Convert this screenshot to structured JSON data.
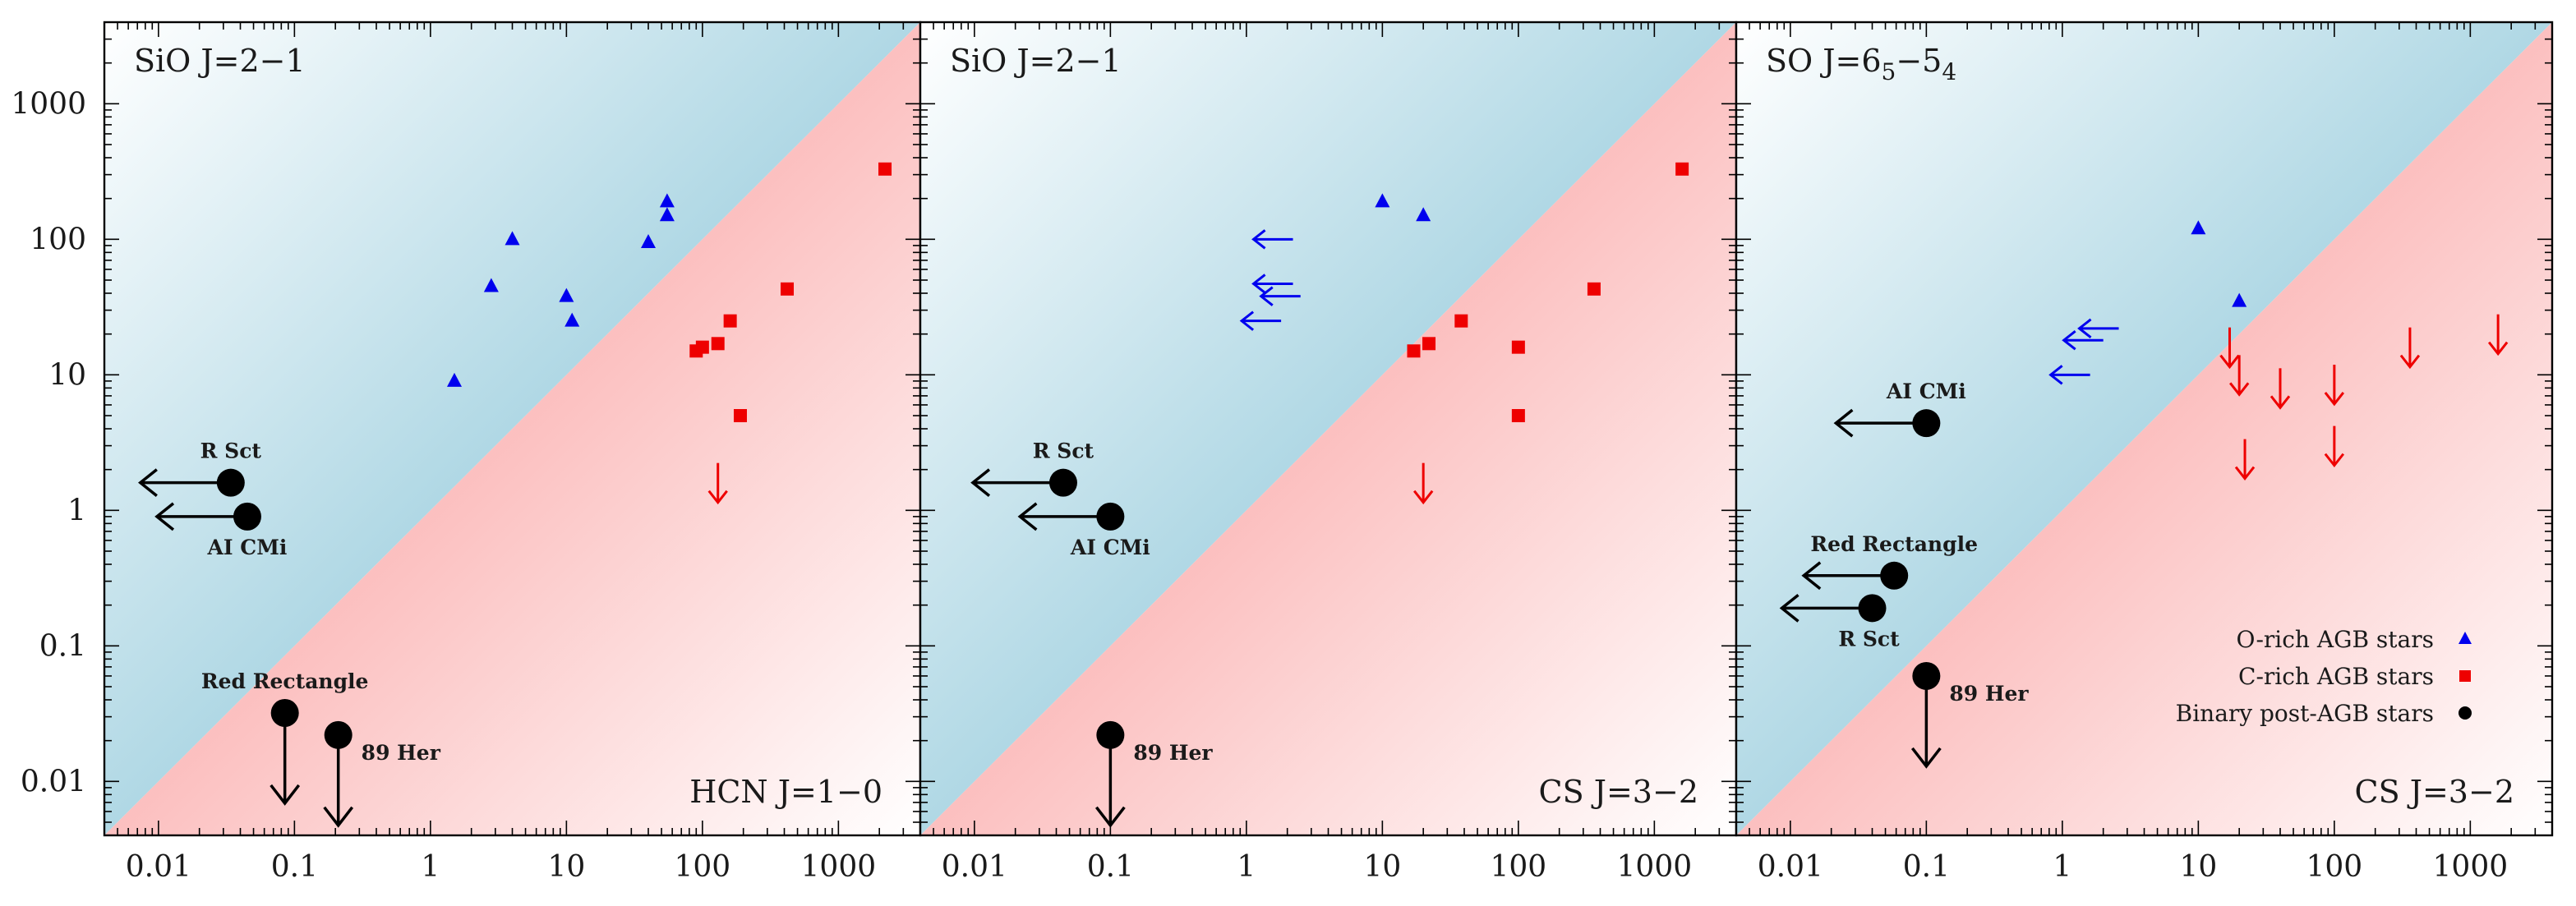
{
  "chart_data": [
    {
      "type": "scatter",
      "scale": "log-log",
      "ylabel_molecule": "SiO J=2−1",
      "xlabel_molecule": "HCN J=1−0",
      "xlim": [
        0.004,
        4000
      ],
      "ylim": [
        0.004,
        4000
      ],
      "x_ticks": [
        "0.01",
        "0.1",
        "1",
        "10",
        "100",
        "1000"
      ],
      "y_ticks": [
        "0.01",
        "0.1",
        "1",
        "10",
        "100",
        "1000"
      ],
      "series": [
        {
          "name": "O-rich AGB stars",
          "marker": "triangle",
          "color": "#0000ee",
          "points": [
            [
              1.5,
              9
            ],
            [
              2.8,
              45
            ],
            [
              4,
              100
            ],
            [
              10,
              38
            ],
            [
              11,
              25
            ],
            [
              40,
              95
            ],
            [
              55,
              150
            ],
            [
              55,
              190
            ]
          ],
          "upper_limits": []
        },
        {
          "name": "C-rich AGB stars",
          "marker": "square",
          "color": "#ee0000",
          "points": [
            [
              90,
              15
            ],
            [
              100,
              16
            ],
            [
              130,
              17
            ],
            [
              160,
              25
            ],
            [
              190,
              5
            ],
            [
              420,
              43
            ],
            [
              2200,
              330
            ]
          ],
          "upper_limits": [
            [
              130,
              1.6
            ]
          ]
        },
        {
          "name": "Binary post-AGB stars",
          "marker": "circle",
          "color": "#000000",
          "points": [
            {
              "x": 0.034,
              "y": 1.6,
              "label": "R Sct",
              "limit": "left"
            },
            {
              "x": 0.045,
              "y": 0.9,
              "label": "AI CMi",
              "limit": "left"
            },
            {
              "x": 0.085,
              "y": 0.032,
              "label": "Red Rectangle",
              "limit": "down"
            },
            {
              "x": 0.21,
              "y": 0.022,
              "label": "89 Her",
              "limit": "down"
            }
          ]
        }
      ]
    },
    {
      "type": "scatter",
      "scale": "log-log",
      "ylabel_molecule": "SiO J=2−1",
      "xlabel_molecule": "CS J=3−2",
      "xlim": [
        0.004,
        4000
      ],
      "ylim": [
        0.004,
        4000
      ],
      "x_ticks": [
        "0.01",
        "0.1",
        "1",
        "10",
        "100",
        "1000"
      ],
      "y_ticks": [
        "0.01",
        "0.1",
        "1",
        "10",
        "100",
        "1000"
      ],
      "series": [
        {
          "name": "O-rich AGB stars",
          "marker": "triangle",
          "color": "#0000ee",
          "points": [
            [
              10,
              190
            ],
            [
              20,
              150
            ]
          ],
          "upper_limits": [
            [
              2.2,
              100
            ],
            [
              2.2,
              47
            ],
            [
              2.5,
              38
            ],
            [
              1.8,
              25
            ]
          ]
        },
        {
          "name": "C-rich AGB stars",
          "marker": "square",
          "color": "#ee0000",
          "points": [
            [
              17,
              15
            ],
            [
              22,
              17
            ],
            [
              38,
              25
            ],
            [
              100,
              16
            ],
            [
              100,
              5
            ],
            [
              360,
              43
            ],
            [
              1600,
              330
            ]
          ],
          "upper_limits": [
            [
              20,
              1.6
            ]
          ]
        },
        {
          "name": "Binary post-AGB stars",
          "marker": "circle",
          "color": "#000000",
          "points": [
            {
              "x": 0.045,
              "y": 1.6,
              "label": "R Sct",
              "limit": "left"
            },
            {
              "x": 0.1,
              "y": 0.9,
              "label": "AI CMi",
              "limit": "left"
            },
            {
              "x": 0.1,
              "y": 0.022,
              "label": "89 Her",
              "limit": "down"
            }
          ]
        }
      ]
    },
    {
      "type": "scatter",
      "scale": "log-log",
      "ylabel_molecule": "SO J=6",
      "ylabel_molecule_sub1": "5",
      "ylabel_molecule_mid": "−5",
      "ylabel_molecule_sub2": "4",
      "xlabel_molecule": "CS J=3−2",
      "xlim": [
        0.004,
        4000
      ],
      "ylim": [
        0.004,
        4000
      ],
      "x_ticks": [
        "0.01",
        "0.1",
        "1",
        "10",
        "100",
        "1000"
      ],
      "y_ticks": [
        "0.01",
        "0.1",
        "1",
        "10",
        "100",
        "1000"
      ],
      "series": [
        {
          "name": "O-rich AGB stars",
          "marker": "triangle",
          "color": "#0000ee",
          "points": [
            [
              10,
              120
            ],
            [
              20,
              35
            ]
          ],
          "upper_limits": [
            [
              2.6,
              22
            ],
            [
              2.0,
              18
            ],
            [
              1.6,
              10
            ]
          ]
        },
        {
          "name": "C-rich AGB stars",
          "marker": "square",
          "color": "#ee0000",
          "points": [],
          "upper_limits": [
            [
              17,
              16
            ],
            [
              20,
              10
            ],
            [
              22,
              2.4
            ],
            [
              40,
              8
            ],
            [
              100,
              8.5
            ],
            [
              100,
              3
            ],
            [
              360,
              16
            ],
            [
              1600,
              20
            ]
          ]
        },
        {
          "name": "Binary post-AGB stars",
          "marker": "circle",
          "color": "#000000",
          "points": [
            {
              "x": 0.1,
              "y": 4.4,
              "label": "AI CMi",
              "limit": "left"
            },
            {
              "x": 0.058,
              "y": 0.33,
              "label": "Red Rectangle",
              "limit": "left"
            },
            {
              "x": 0.04,
              "y": 0.19,
              "label": "R Sct",
              "limit": "left"
            },
            {
              "x": 0.1,
              "y": 0.06,
              "label": "89 Her",
              "limit": "down"
            }
          ]
        }
      ]
    }
  ],
  "legend": {
    "placement": "bottom-right of third panel",
    "items": [
      {
        "label": "O-rich AGB stars",
        "marker": "triangle",
        "color": "#0000ee"
      },
      {
        "label": "C-rich AGB stars",
        "marker": "square",
        "color": "#ee0000"
      },
      {
        "label": "Binary post-AGB stars",
        "marker": "circle",
        "color": "#000000"
      }
    ]
  },
  "colors": {
    "upper_region_start": "#ffffff",
    "upper_region_end": "#a8d4e2",
    "lower_region_start": "#fbb9b9",
    "lower_region_end": "#ffffff",
    "o_rich": "#0000ee",
    "c_rich": "#ee0000",
    "binary": "#000000",
    "o_rich_arrow": "#0000ee",
    "c_rich_arrow": "#ee0000"
  }
}
